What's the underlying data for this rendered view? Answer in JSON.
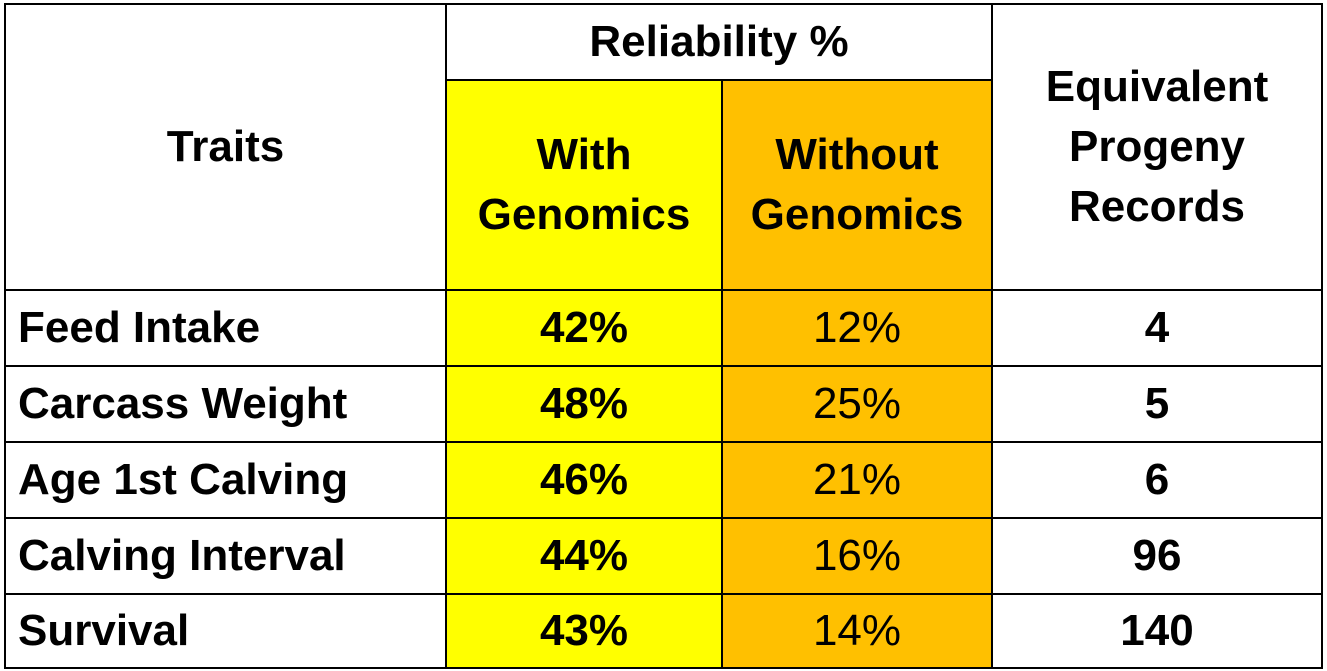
{
  "table": {
    "header": {
      "traits": "Traits",
      "reliability": "Reliability %",
      "with_genomics": [
        "With",
        "Genomics"
      ],
      "without_genomics": [
        "Without",
        "Genomics"
      ],
      "equivalent": [
        "Equivalent",
        "Progeny",
        "Records"
      ]
    },
    "rows": [
      {
        "trait": "Feed Intake",
        "with": "42%",
        "without": "12%",
        "epr": "4"
      },
      {
        "trait": "Carcass Weight",
        "with": "48%",
        "without": "25%",
        "epr": "5"
      },
      {
        "trait": "Age 1st Calving",
        "with": "46%",
        "without": "21%",
        "epr": "6"
      },
      {
        "trait": "Calving Interval",
        "with": "44%",
        "without": "16%",
        "epr": "96"
      },
      {
        "trait": "Survival",
        "with": "43%",
        "without": "14%",
        "epr": "140"
      }
    ],
    "colors": {
      "with_bg": "#ffff00",
      "without_bg": "#ffc000"
    }
  }
}
